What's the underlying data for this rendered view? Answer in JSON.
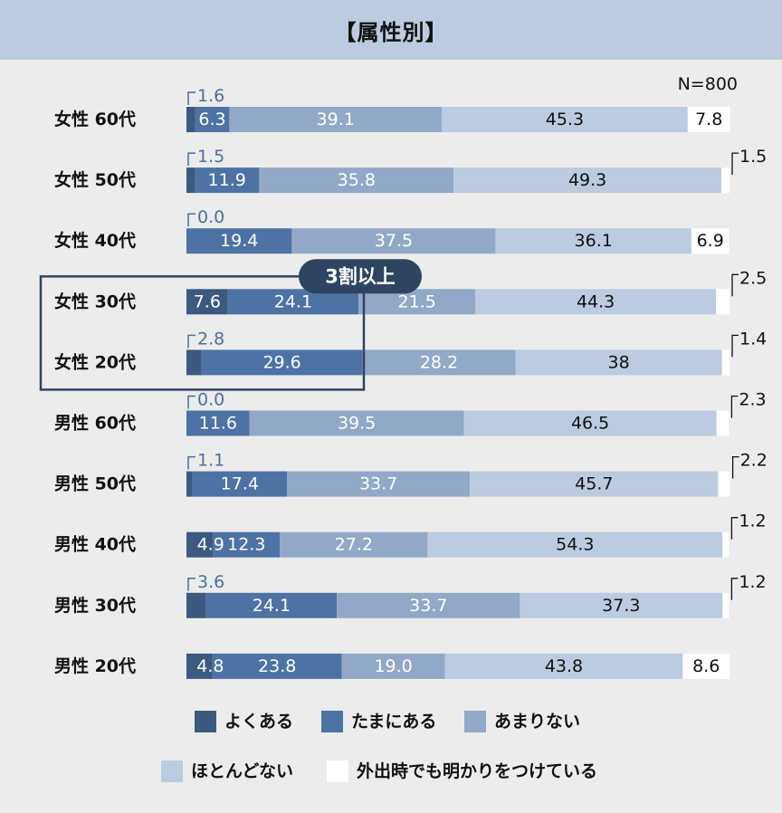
{
  "header": {
    "title": "【属性別】"
  },
  "chart_data": {
    "type": "bar",
    "orientation": "horizontal",
    "stacked": true,
    "sample_note": "N=800",
    "categories": [
      "女性 60代",
      "女性 50代",
      "女性 40代",
      "女性 30代",
      "女性 20代",
      "男性 60代",
      "男性 50代",
      "男性 40代",
      "男性 30代",
      "男性 20代"
    ],
    "series": [
      {
        "name": "よくある",
        "color": "#3c5a80",
        "values": [
          1.6,
          1.5,
          0.0,
          7.6,
          2.8,
          0.0,
          1.1,
          4.9,
          3.6,
          4.8
        ],
        "labels": [
          "1.6",
          "1.5",
          "0.0",
          "7.6",
          "2.8",
          "0.0",
          "1.1",
          "4.9",
          "3.6",
          "4.8"
        ]
      },
      {
        "name": "たまにある",
        "color": "#4d73a5",
        "values": [
          6.3,
          11.9,
          19.4,
          24.1,
          29.6,
          11.6,
          17.4,
          12.3,
          24.1,
          23.8
        ],
        "labels": [
          "6.3",
          "11.9",
          "19.4",
          "24.1",
          "29.6",
          "11.6",
          "17.4",
          "12.3",
          "24.1",
          "23.8"
        ]
      },
      {
        "name": "あまりない",
        "color": "#92a8c8",
        "values": [
          39.1,
          35.8,
          37.5,
          21.5,
          28.2,
          39.5,
          33.7,
          27.2,
          33.7,
          19.0
        ],
        "labels": [
          "39.1",
          "35.8",
          "37.5",
          "21.5",
          "28.2",
          "39.5",
          "33.7",
          "27.2",
          "33.7",
          "19.0"
        ]
      },
      {
        "name": "ほとんどない",
        "color": "#bccbdf",
        "values": [
          45.3,
          49.3,
          36.1,
          44.3,
          38.0,
          46.5,
          45.7,
          54.3,
          37.3,
          43.8
        ],
        "labels": [
          "45.3",
          "49.3",
          "36.1",
          "44.3",
          "38",
          "46.5",
          "45.7",
          "54.3",
          "37.3",
          "43.8"
        ]
      },
      {
        "name": "外出時でも明かりをつけている",
        "color": "#ffffff",
        "values": [
          7.8,
          1.5,
          6.9,
          2.5,
          1.4,
          2.3,
          2.2,
          1.2,
          1.2,
          8.6
        ],
        "labels": [
          "7.8",
          "1.5",
          "6.9",
          "2.5",
          "1.4",
          "2.3",
          "2.2",
          "1.2",
          "1.2",
          "8.6"
        ]
      }
    ],
    "xlim": [
      0,
      100
    ],
    "highlight": {
      "label": "3割以上",
      "categories": [
        "女性 30代",
        "女性 20代"
      ]
    },
    "legend_position": "bottom"
  }
}
